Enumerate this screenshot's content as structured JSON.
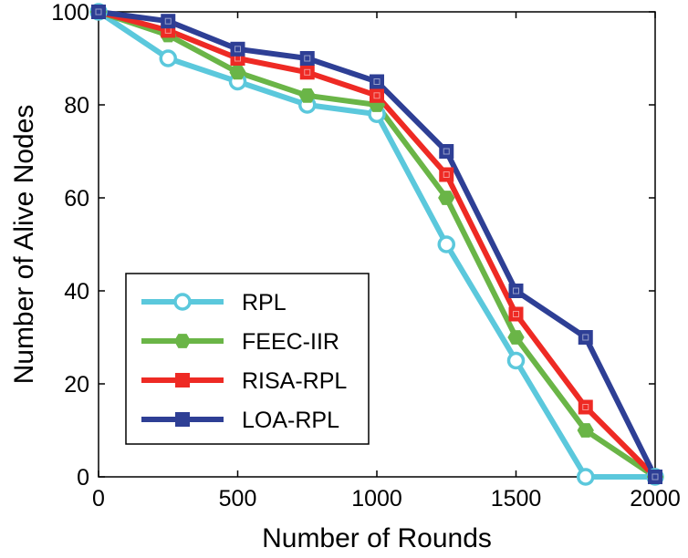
{
  "chart_data": {
    "type": "line",
    "title": "",
    "xlabel": "Number of Rounds",
    "ylabel": "Number of Alive Nodes",
    "xlim": [
      0,
      2000
    ],
    "ylim": [
      0,
      100
    ],
    "xticks": [
      0,
      500,
      1000,
      1500,
      2000
    ],
    "yticks": [
      0,
      20,
      40,
      60,
      80,
      100
    ],
    "x": [
      0,
      250,
      500,
      750,
      1000,
      1250,
      1500,
      1750,
      2000
    ],
    "grid": false,
    "legend_position": "bottom-left",
    "series": [
      {
        "name": "RPL",
        "color": "#5bc8dc",
        "marker": "circle",
        "values": [
          100,
          90,
          85,
          80,
          78,
          50,
          25,
          0,
          0
        ]
      },
      {
        "name": "FEEC-IIR",
        "color": "#6ab547",
        "marker": "hexagon",
        "values": [
          100,
          95,
          87,
          82,
          80,
          60,
          30,
          10,
          0
        ]
      },
      {
        "name": "RISA-RPL",
        "color": "#ee2a24",
        "marker": "square",
        "values": [
          100,
          96,
          90,
          87,
          82,
          65,
          35,
          15,
          0
        ]
      },
      {
        "name": "LOA-RPL",
        "color": "#2e3f95",
        "marker": "square",
        "values": [
          100,
          98,
          92,
          90,
          85,
          70,
          40,
          30,
          0
        ]
      }
    ]
  }
}
